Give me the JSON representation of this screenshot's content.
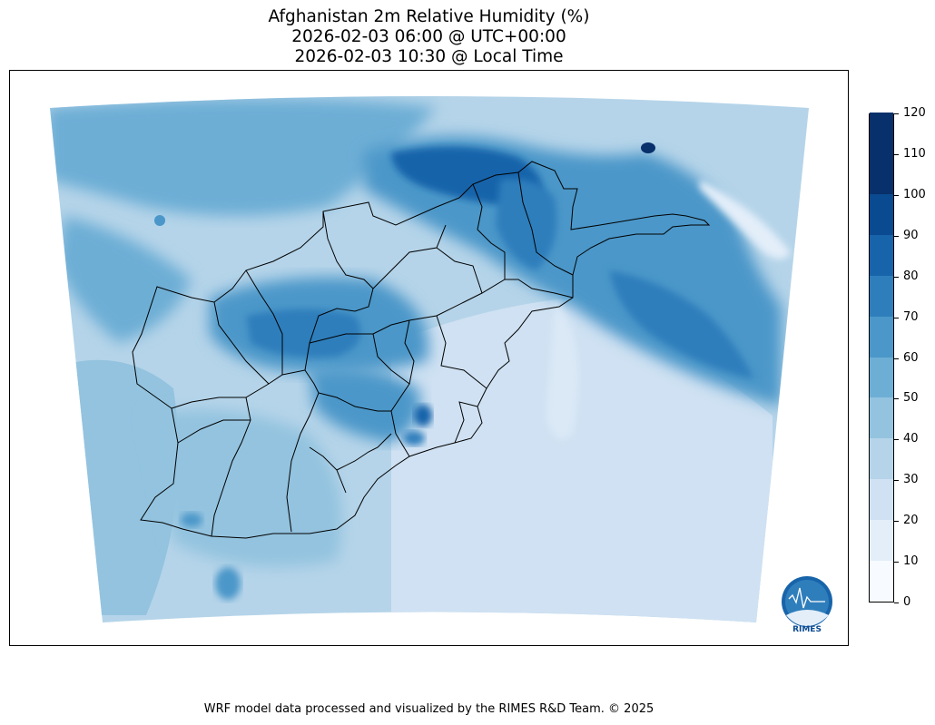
{
  "title": {
    "line1": "Afghanistan 2m Relative Humidity (%)",
    "line2": "2026-02-03 06:00 @ UTC+00:00",
    "line3": "2026-02-03 10:30 @ Local Time"
  },
  "colorbar": {
    "levels": [
      0,
      10,
      20,
      30,
      40,
      50,
      60,
      70,
      80,
      90,
      100,
      110,
      120
    ],
    "labels": [
      "0",
      "10",
      "20",
      "30",
      "40",
      "50",
      "60",
      "70",
      "80",
      "90",
      "100",
      "110",
      "120"
    ],
    "colors": [
      "#f7fbff",
      "#e3eef9",
      "#cfe1f2",
      "#b5d4e9",
      "#93c3df",
      "#6daed5",
      "#4b97c9",
      "#2f7ebc",
      "#1864aa",
      "#0a4a90",
      "#08306b",
      "#08306b"
    ]
  },
  "logo": {
    "text": "RIMES"
  },
  "footer": "WRF model data processed and visualized by the RIMES R&D Team. © 2025"
}
